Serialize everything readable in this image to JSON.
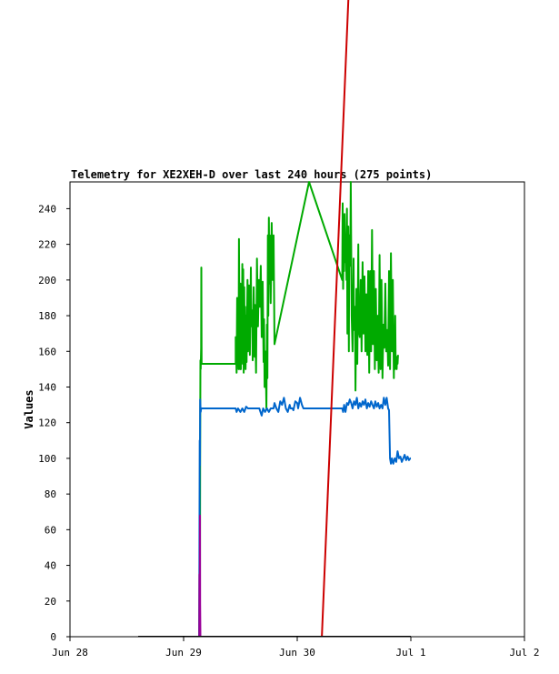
{
  "chart_data": {
    "type": "line",
    "title": "Telemetry for XE2XEH-D over last 240 hours (275 points)",
    "xlabel": "",
    "ylabel": "Values",
    "xlim": [
      0,
      96
    ],
    "ylim": [
      0,
      255
    ],
    "x_unit": "hours since Jun 28 00:00",
    "x_ticks": [
      {
        "x": 0,
        "label": "Jun 28"
      },
      {
        "x": 24,
        "label": "Jun 29"
      },
      {
        "x": 48,
        "label": "Jun 30"
      },
      {
        "x": 72,
        "label": "Jul 1"
      },
      {
        "x": 96,
        "label": "Jul 2"
      }
    ],
    "y_ticks": [
      0,
      20,
      40,
      60,
      80,
      100,
      120,
      140,
      160,
      180,
      200,
      220,
      240
    ],
    "grid": false,
    "legend": "none",
    "series": [
      {
        "color": "#00aa00",
        "points": [
          [
            27.3,
            0
          ],
          [
            27.4,
            68
          ],
          [
            27.45,
            20
          ],
          [
            27.5,
            100
          ],
          [
            27.55,
            155
          ],
          [
            27.6,
            150
          ],
          [
            27.7,
            162
          ],
          [
            27.75,
            207
          ],
          [
            27.8,
            153
          ],
          [
            28,
            153
          ],
          [
            35,
            153
          ],
          [
            35,
            168
          ],
          [
            35.2,
            148
          ],
          [
            35.3,
            190
          ],
          [
            35.4,
            158
          ],
          [
            35.5,
            176
          ],
          [
            35.6,
            150
          ],
          [
            35.7,
            223
          ],
          [
            35.8,
            164
          ],
          [
            35.9,
            150
          ],
          [
            36,
            198
          ],
          [
            36.1,
            150
          ],
          [
            36.2,
            190
          ],
          [
            36.3,
            172
          ],
          [
            36.4,
            209
          ],
          [
            36.5,
            153
          ],
          [
            36.6,
            206
          ],
          [
            36.7,
            148
          ],
          [
            36.8,
            196
          ],
          [
            36.9,
            166
          ],
          [
            37,
            185
          ],
          [
            37.1,
            150
          ],
          [
            37.2,
            180
          ],
          [
            37.3,
            154
          ],
          [
            37.5,
            200
          ],
          [
            37.6,
            160
          ],
          [
            37.8,
            197
          ],
          [
            38,
            158
          ],
          [
            38.2,
            207
          ],
          [
            38.3,
            174
          ],
          [
            38.5,
            183
          ],
          [
            38.6,
            155
          ],
          [
            38.8,
            196
          ],
          [
            39,
            157
          ],
          [
            39.1,
            186
          ],
          [
            39.3,
            148
          ],
          [
            39.5,
            212
          ],
          [
            39.7,
            174
          ],
          [
            39.9,
            200
          ],
          [
            40.1,
            185
          ],
          [
            40.3,
            208
          ],
          [
            40.5,
            168
          ],
          [
            40.7,
            199
          ],
          [
            40.9,
            154
          ],
          [
            41,
            178
          ],
          [
            41.1,
            140
          ],
          [
            41.2,
            160
          ],
          [
            41.3,
            143
          ],
          [
            41.4,
            145
          ],
          [
            41.5,
            128
          ],
          [
            41.6,
            175
          ],
          [
            41.7,
            145
          ],
          [
            41.8,
            225
          ],
          [
            41.9,
            180
          ],
          [
            42,
            235
          ],
          [
            42.1,
            198
          ],
          [
            42.2,
            225
          ],
          [
            42.4,
            187
          ],
          [
            42.6,
            232
          ],
          [
            42.8,
            200
          ],
          [
            43,
            225
          ],
          [
            43.2,
            164
          ],
          [
            50.5,
            255
          ],
          [
            57.5,
            200
          ],
          [
            57.6,
            243
          ],
          [
            57.7,
            195
          ],
          [
            57.8,
            225
          ],
          [
            57.9,
            205
          ],
          [
            58,
            237
          ],
          [
            58.2,
            210
          ],
          [
            58.3,
            218
          ],
          [
            58.4,
            200
          ],
          [
            58.5,
            240
          ],
          [
            58.6,
            170
          ],
          [
            58.8,
            230
          ],
          [
            58.9,
            160
          ],
          [
            59,
            225
          ],
          [
            59.2,
            208
          ],
          [
            59.3,
            255
          ],
          [
            59.5,
            180
          ],
          [
            59.7,
            160
          ],
          [
            59.9,
            212
          ],
          [
            60,
            172
          ],
          [
            60.2,
            185
          ],
          [
            60.3,
            138
          ],
          [
            60.5,
            195
          ],
          [
            60.7,
            153
          ],
          [
            60.9,
            220
          ],
          [
            61,
            172
          ],
          [
            61.2,
            168
          ],
          [
            61.4,
            200
          ],
          [
            61.6,
            160
          ],
          [
            61.8,
            210
          ],
          [
            62,
            170
          ],
          [
            62.2,
            202
          ],
          [
            62.4,
            160
          ],
          [
            62.6,
            192
          ],
          [
            62.8,
            158
          ],
          [
            63,
            205
          ],
          [
            63.2,
            148
          ],
          [
            63.4,
            205
          ],
          [
            63.6,
            160
          ],
          [
            63.8,
            228
          ],
          [
            64,
            164
          ],
          [
            64.2,
            205
          ],
          [
            64.4,
            150
          ],
          [
            64.6,
            195
          ],
          [
            64.8,
            155
          ],
          [
            65,
            180
          ],
          [
            65.2,
            148
          ],
          [
            65.4,
            214
          ],
          [
            65.6,
            150
          ],
          [
            65.8,
            200
          ],
          [
            66,
            145
          ],
          [
            66.2,
            175
          ],
          [
            66.4,
            162
          ],
          [
            66.6,
            198
          ],
          [
            66.8,
            160
          ],
          [
            67,
            172
          ],
          [
            67.2,
            152
          ],
          [
            67.4,
            205
          ],
          [
            67.6,
            150
          ],
          [
            67.8,
            215
          ],
          [
            68,
            160
          ],
          [
            68.2,
            200
          ],
          [
            68.4,
            145
          ],
          [
            68.5,
            172
          ],
          [
            68.6,
            150
          ],
          [
            68.7,
            180
          ],
          [
            68.8,
            153
          ],
          [
            69,
            150
          ],
          [
            69.1,
            157
          ],
          [
            69.2,
            153
          ],
          [
            69.3,
            158
          ]
        ]
      },
      {
        "color": "#0066cc",
        "points": [
          [
            27.3,
            0
          ],
          [
            27.35,
            50
          ],
          [
            27.4,
            110
          ],
          [
            27.45,
            96
          ],
          [
            27.5,
            133
          ],
          [
            27.6,
            126
          ],
          [
            27.7,
            128
          ],
          [
            28,
            128
          ],
          [
            35,
            128
          ],
          [
            35.2,
            126
          ],
          [
            35.5,
            128
          ],
          [
            36,
            126
          ],
          [
            36.4,
            128
          ],
          [
            36.8,
            126
          ],
          [
            37.2,
            129
          ],
          [
            37.6,
            128
          ],
          [
            38,
            128
          ],
          [
            40,
            128
          ],
          [
            40.5,
            124
          ],
          [
            40.8,
            128
          ],
          [
            41.2,
            126
          ],
          [
            41.6,
            128
          ],
          [
            42,
            126
          ],
          [
            42.4,
            128
          ],
          [
            42.8,
            128
          ],
          [
            43,
            128
          ],
          [
            43.2,
            131
          ],
          [
            43.6,
            128
          ],
          [
            44,
            126
          ],
          [
            44.4,
            132
          ],
          [
            44.8,
            130
          ],
          [
            45.2,
            134
          ],
          [
            45.6,
            128
          ],
          [
            46,
            126
          ],
          [
            46.4,
            130
          ],
          [
            46.6,
            128
          ],
          [
            47,
            128
          ],
          [
            47.2,
            127
          ],
          [
            47.6,
            132
          ],
          [
            48,
            131
          ],
          [
            48.2,
            128
          ],
          [
            48.6,
            134
          ],
          [
            49,
            130
          ],
          [
            49.3,
            128
          ],
          [
            57.5,
            128
          ],
          [
            57.7,
            126
          ],
          [
            57.9,
            130
          ],
          [
            58.2,
            126
          ],
          [
            58.5,
            131
          ],
          [
            58.8,
            130
          ],
          [
            59.1,
            133
          ],
          [
            59.4,
            131
          ],
          [
            59.7,
            128
          ],
          [
            60,
            132
          ],
          [
            60.3,
            130
          ],
          [
            60.6,
            134
          ],
          [
            60.9,
            128
          ],
          [
            61.2,
            131
          ],
          [
            61.5,
            129
          ],
          [
            61.8,
            132
          ],
          [
            62.1,
            130
          ],
          [
            62.4,
            133
          ],
          [
            62.7,
            128
          ],
          [
            63,
            131
          ],
          [
            63.3,
            129
          ],
          [
            63.6,
            132
          ],
          [
            63.9,
            130
          ],
          [
            64.2,
            128
          ],
          [
            64.5,
            132
          ],
          [
            64.8,
            129
          ],
          [
            65.1,
            131
          ],
          [
            65.4,
            128
          ],
          [
            65.7,
            130
          ],
          [
            66,
            128
          ],
          [
            66.3,
            134
          ],
          [
            66.6,
            130
          ],
          [
            66.9,
            134
          ],
          [
            67.2,
            128
          ],
          [
            67.4,
            127
          ],
          [
            67.6,
            100
          ],
          [
            67.8,
            97
          ],
          [
            68,
            100
          ],
          [
            68.3,
            97
          ],
          [
            68.6,
            100
          ],
          [
            68.9,
            98
          ],
          [
            69.2,
            104
          ],
          [
            69.5,
            100
          ],
          [
            69.8,
            101
          ],
          [
            70.1,
            98
          ],
          [
            70.4,
            100
          ],
          [
            70.7,
            102
          ],
          [
            71,
            99
          ],
          [
            71.3,
            101
          ],
          [
            71.6,
            99
          ],
          [
            71.9,
            100
          ],
          [
            72,
            100
          ]
        ]
      },
      {
        "color": "#cc0000",
        "points": [
          [
            53.2,
            0
          ],
          [
            57.2,
            255
          ]
        ]
      },
      {
        "color": "#990099",
        "points": [
          [
            27.3,
            0
          ],
          [
            27.35,
            35
          ],
          [
            27.4,
            12
          ],
          [
            27.45,
            68
          ],
          [
            27.5,
            18
          ],
          [
            27.55,
            0
          ]
        ]
      },
      {
        "color": "#000000",
        "points": [
          [
            14.4,
            0
          ],
          [
            72,
            0
          ]
        ]
      }
    ]
  }
}
